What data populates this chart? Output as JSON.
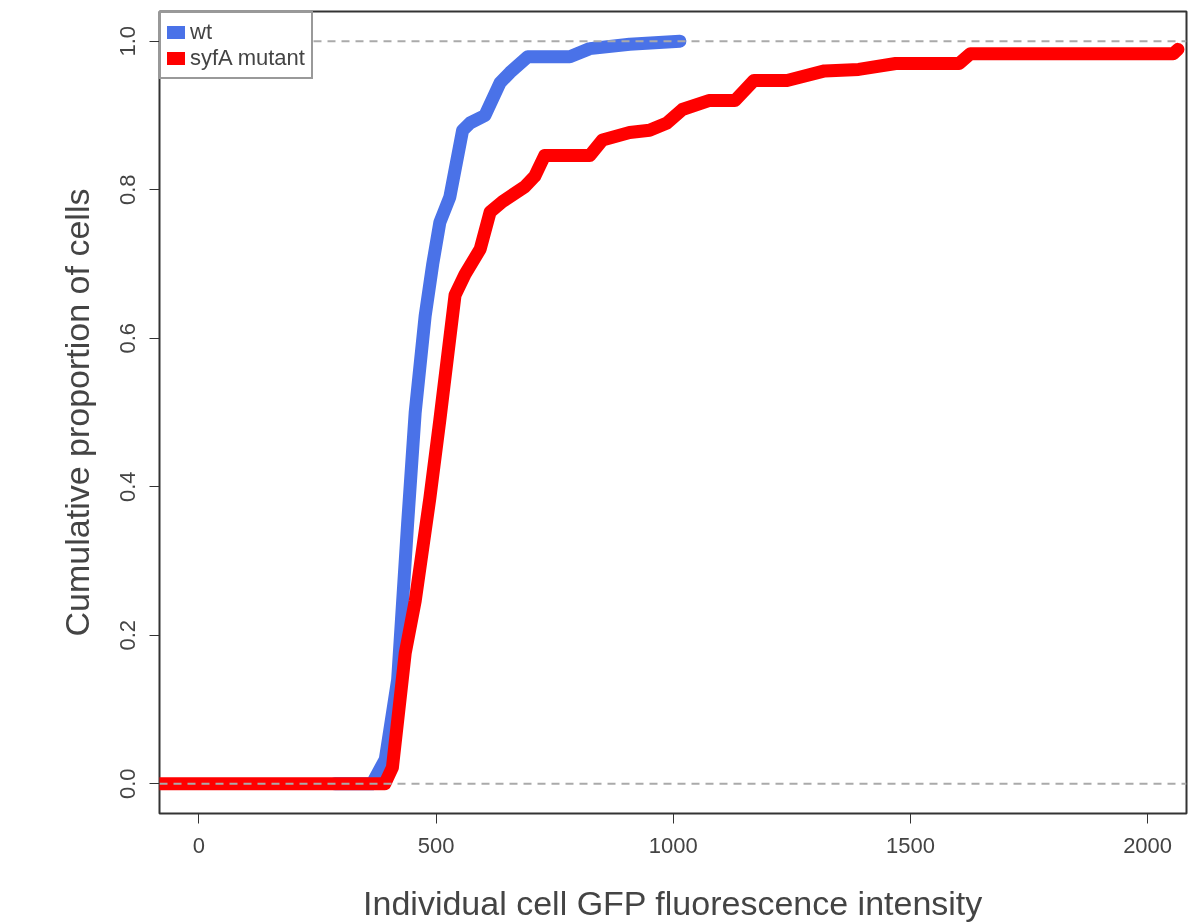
{
  "chart_data": {
    "type": "line",
    "xlabel": "Individual cell GFP fluorescence intensity",
    "ylabel": "Cumulative proportion of cells",
    "xlim": [
      -83,
      2082
    ],
    "ylim": [
      -0.04,
      1.04
    ],
    "xticks": [
      0,
      500,
      1000,
      1500,
      2000
    ],
    "yticks": [
      {
        "value": 0,
        "label": "0.0"
      },
      {
        "value": 0.2,
        "label": "0.2"
      },
      {
        "value": 0.4,
        "label": "0.4"
      },
      {
        "value": 0.6,
        "label": "0.6"
      },
      {
        "value": 0.8,
        "label": "0.8"
      },
      {
        "value": 1,
        "label": "1.0"
      }
    ],
    "grid": false,
    "legend": "top left",
    "marker": "none",
    "line_style": "solid",
    "ref_lines": [
      {
        "axis": "y",
        "value": 0,
        "color": "#aaaaaa",
        "line_style": "dashed"
      },
      {
        "axis": "y",
        "value": 1,
        "color": "#aaaaaa",
        "line_style": "dashed"
      }
    ],
    "series": [
      {
        "name": "wt",
        "color": "#4a72e8",
        "x": [
          287,
          365,
          393,
          419,
          440,
          456,
          477,
          493,
          508,
          529,
          556,
          572,
          603,
          635,
          656,
          693,
          782,
          824,
          908,
          1014
        ],
        "values": [
          0,
          0,
          0.033,
          0.14,
          0.35,
          0.5,
          0.63,
          0.7,
          0.756,
          0.79,
          0.88,
          0.89,
          0.9,
          0.944,
          0.958,
          0.979,
          0.979,
          0.99,
          0.996,
          1.0
        ]
      },
      {
        "name": "syfA mutant",
        "color": "#ff0000",
        "x": [
          -83,
          392,
          408,
          435,
          456,
          487,
          508,
          524,
          540,
          561,
          593,
          614,
          640,
          687,
          708,
          729,
          824,
          851,
          908,
          950,
          987,
          1019,
          1075,
          1130,
          1170,
          1240,
          1319,
          1391,
          1469,
          1603,
          1626,
          2054,
          2064
        ],
        "values": [
          0,
          0,
          0.022,
          0.176,
          0.246,
          0.385,
          0.49,
          0.574,
          0.658,
          0.686,
          0.72,
          0.77,
          0.784,
          0.804,
          0.818,
          0.846,
          0.846,
          0.867,
          0.877,
          0.88,
          0.89,
          0.908,
          0.92,
          0.92,
          0.947,
          0.947,
          0.96,
          0.962,
          0.97,
          0.97,
          0.983,
          0.983,
          0.989
        ]
      }
    ]
  }
}
